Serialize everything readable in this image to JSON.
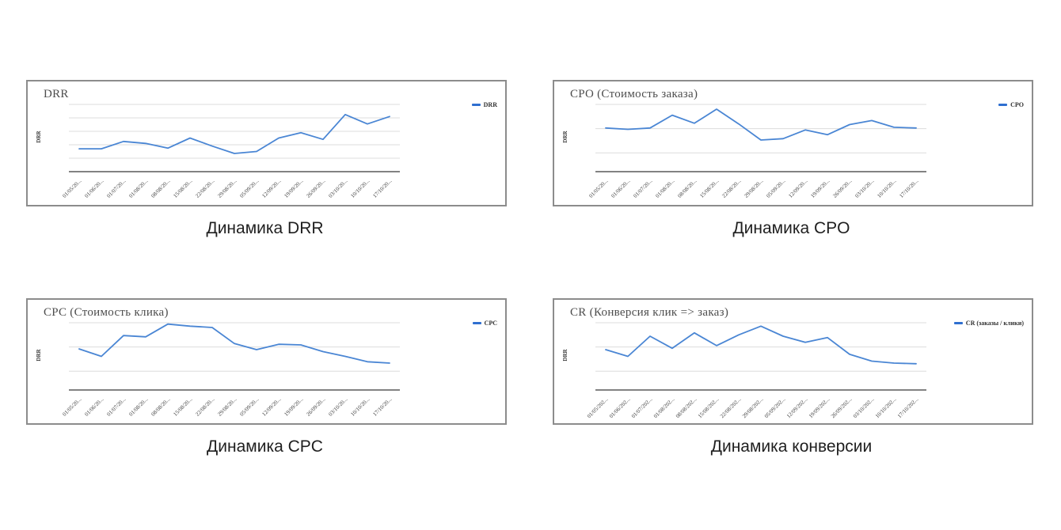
{
  "page": {
    "background": "#ffffff"
  },
  "colors": {
    "line": "#4a86d4",
    "legend_swatch": "#2f6fd0",
    "gridline": "#dcdcdc",
    "axis": "#595959",
    "chart_border": "#8c8c8c",
    "title_text": "#4d4d4d",
    "tick_text": "#404040",
    "caption_text": "#1f1f1f"
  },
  "chart_data": [
    {
      "type": "line",
      "title": "DRR",
      "caption": "Динамика DRR",
      "legend": "DRR",
      "legend_position": "right",
      "xlabel": "",
      "ylabel": "DRR",
      "categories": [
        "01/05/20...",
        "01/06/20...",
        "01/07/20...",
        "01/08/20...",
        "08/08/20...",
        "15/08/20...",
        "22/08/20...",
        "29/08/20...",
        "05/09/20...",
        "12/09/20...",
        "19/09/20...",
        "26/09/20...",
        "03/10/20...",
        "10/10/20...",
        "17/10/20..."
      ],
      "values": [
        3.4,
        3.4,
        4.5,
        4.2,
        3.5,
        5.0,
        3.8,
        2.7,
        3.0,
        5.0,
        5.8,
        4.8,
        8.5,
        7.1,
        8.2
      ],
      "ylim": [
        0,
        10
      ],
      "grid": true,
      "gridline_values": [
        10,
        8,
        6,
        4,
        2
      ]
    },
    {
      "type": "line",
      "title": "CPO (Стоимость заказа)",
      "caption": "Динамика CPO",
      "legend": "CPO",
      "legend_position": "right",
      "xlabel": "",
      "ylabel": "DRR",
      "categories": [
        "01/05/20...",
        "01/06/20...",
        "01/07/20...",
        "01/08/20...",
        "08/08/20...",
        "15/08/20...",
        "22/08/20...",
        "29/08/20...",
        "05/09/20...",
        "12/09/20...",
        "19/09/20...",
        "26/09/20...",
        "03/10/20...",
        "10/10/20...",
        "17/10/20..."
      ],
      "values": [
        6.5,
        6.3,
        6.5,
        8.4,
        7.2,
        9.3,
        7.1,
        4.7,
        4.9,
        6.2,
        5.5,
        7.0,
        7.6,
        6.6,
        6.5
      ],
      "ylim": [
        0,
        10
      ],
      "grid": true,
      "gridline_values": [
        10,
        6.4,
        2.8
      ]
    },
    {
      "type": "line",
      "title": "CPC (Стоимость клика)",
      "caption": "Динамика CPC",
      "legend": "CPC",
      "legend_position": "right",
      "xlabel": "",
      "ylabel": "DRR",
      "categories": [
        "01/05/20...",
        "01/06/20...",
        "01/07/20...",
        "01/08/20...",
        "08/08/20...",
        "15/08/20...",
        "22/08/20...",
        "29/08/20...",
        "05/09/20...",
        "12/09/20...",
        "19/09/20...",
        "26/09/20...",
        "03/10/20...",
        "10/10/20...",
        "17/10/20..."
      ],
      "values": [
        6.1,
        5.0,
        8.1,
        7.9,
        9.8,
        9.5,
        9.3,
        6.9,
        6.0,
        6.8,
        6.7,
        5.7,
        5.0,
        4.2,
        4.0
      ],
      "ylim": [
        0,
        10
      ],
      "grid": true,
      "gridline_values": [
        10,
        6.4,
        2.8
      ]
    },
    {
      "type": "line",
      "title": "CR (Конверсия клик => заказ)",
      "caption": "Динамика конверсии",
      "legend": "CR (заказы / клики)",
      "legend_position": "right",
      "xlabel": "",
      "ylabel": "DRR",
      "categories": [
        "01/05/202...",
        "01/06/202...",
        "01/07/202...",
        "01/08/202...",
        "08/08/202...",
        "15/08/202...",
        "22/08/202...",
        "29/08/202...",
        "05/09/202...",
        "12/09/202...",
        "19/09/202...",
        "26/09/202...",
        "03/10/202...",
        "10/10/202...",
        "17/10/202..."
      ],
      "values": [
        6.0,
        5.0,
        8.0,
        6.2,
        8.5,
        6.6,
        8.2,
        9.5,
        8.0,
        7.1,
        7.8,
        5.3,
        4.3,
        4.0,
        3.9
      ],
      "ylim": [
        0,
        10
      ],
      "grid": true,
      "gridline_values": [
        10,
        6.4,
        2.8
      ]
    }
  ]
}
